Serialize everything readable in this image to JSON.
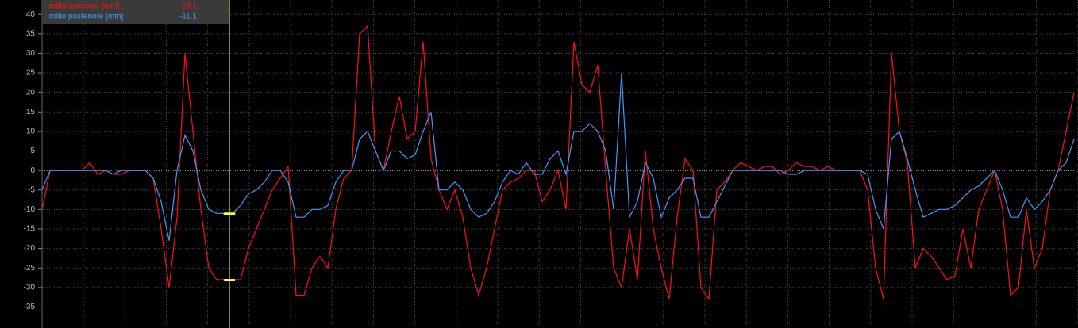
{
  "chart_data": {
    "type": "line",
    "series": [
      {
        "name": "rollio anteriore [mm]",
        "color": "#ff1010",
        "cursor_value": -28.1,
        "values": [
          -10,
          0,
          0,
          0,
          0,
          0,
          2,
          -1,
          0,
          -1,
          -1,
          0,
          0,
          0,
          -2,
          -15,
          -30,
          -12,
          30,
          10,
          -10,
          -25,
          -28,
          -28,
          -28,
          -28,
          -20,
          -15,
          -10,
          -5,
          -2,
          1,
          -32,
          -32,
          -25,
          -22,
          -25,
          -10,
          -2,
          0,
          35,
          37,
          5,
          0,
          10,
          19,
          8,
          10,
          33,
          3,
          -5,
          -10,
          -5,
          -12,
          -25,
          -32,
          -25,
          -15,
          -5,
          -3,
          -2,
          0,
          0,
          -8,
          -5,
          0,
          -10,
          33,
          22,
          20,
          27,
          0,
          -25,
          -30,
          -15,
          -28,
          5,
          -15,
          -25,
          -33,
          -12,
          3,
          0,
          -30,
          -33,
          -5,
          -3,
          0,
          2,
          1,
          0,
          1,
          1,
          -1,
          0,
          2,
          1,
          1,
          0,
          1,
          0,
          0,
          0,
          0,
          -5,
          -25,
          -33,
          30,
          10,
          2,
          -25,
          -20,
          -22,
          -25,
          -28,
          -27,
          -15,
          -25,
          -10,
          -5,
          0,
          -10,
          -32,
          -30,
          -10,
          -25,
          -20,
          -5,
          0,
          10,
          20
        ]
      },
      {
        "name": "rollio posteriore [mm]",
        "color": "#3d9bff",
        "cursor_value": -11.1,
        "values": [
          -5,
          0,
          0,
          0,
          0,
          0,
          0,
          0,
          0,
          -1,
          0,
          0,
          0,
          0,
          -2,
          -8,
          -18,
          0,
          9,
          5,
          -5,
          -10,
          -11,
          -11,
          -11,
          -9,
          -6,
          -5,
          -3,
          0,
          0,
          -3,
          -12,
          -12,
          -10,
          -10,
          -9,
          -3,
          0,
          0,
          8,
          10,
          5,
          0,
          5,
          5,
          3,
          4,
          10,
          15,
          -5,
          -5,
          -3,
          -5,
          -10,
          -12,
          -11,
          -8,
          -3,
          0,
          -1,
          2,
          -1,
          -1,
          3,
          5,
          -1,
          10,
          10,
          12,
          10,
          5,
          -10,
          25,
          -12,
          -8,
          2,
          -2,
          -12,
          -7,
          -5,
          -2,
          -2,
          -12,
          -12,
          -8,
          -4,
          0,
          0,
          0,
          0,
          0,
          0,
          0,
          -1,
          -1,
          0,
          0,
          0,
          0,
          0,
          0,
          0,
          0,
          -1,
          -10,
          -15,
          8,
          10,
          3,
          -5,
          -12,
          -11,
          -10,
          -10,
          -9,
          -7,
          -5,
          -4,
          -2,
          0,
          -5,
          -12,
          -12,
          -7,
          -10,
          -8,
          -5,
          0,
          2,
          8
        ]
      }
    ],
    "ylim": [
      -40.4,
      43.7
    ],
    "yticks": [
      -35,
      -30,
      -25,
      -20,
      -15,
      -10,
      -5,
      0,
      5,
      10,
      15,
      20,
      25,
      30,
      35,
      40
    ],
    "grid": true
  }
}
